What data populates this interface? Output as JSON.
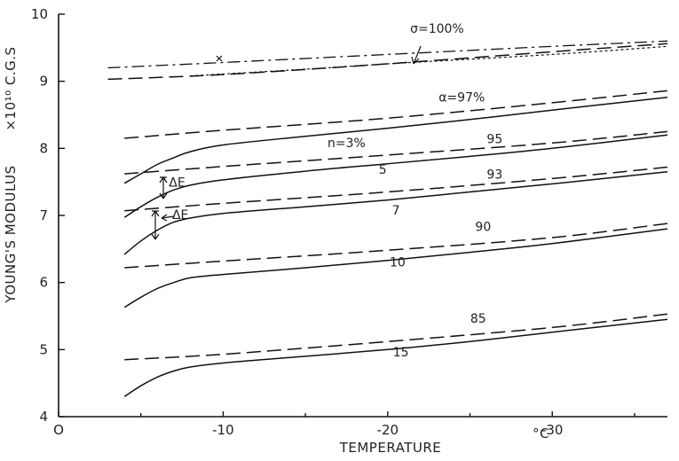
{
  "chart_data": {
    "type": "line",
    "xlabel": "TEMPERATURE",
    "xunit": "°C",
    "ylabel": "YOUNG'S MODULUS",
    "yunit": "×10¹⁰ C.G.S",
    "xlim": [
      0,
      -37
    ],
    "ylim": [
      4,
      10
    ],
    "x_ticks": [
      0,
      -10,
      -20,
      -30
    ],
    "x_tick_labels": [
      "O",
      "-10",
      "-20",
      "-30"
    ],
    "y_ticks": [
      4,
      5,
      6,
      7,
      8,
      9,
      10
    ],
    "y_tick_labels": [
      "4",
      "5",
      "6",
      "7",
      "8",
      "9",
      "10"
    ],
    "grid": false,
    "series": [
      {
        "name": "σ=100%",
        "style": "dashdot",
        "x": [
          -3,
          -10,
          -20,
          -30,
          -37
        ],
        "y": [
          9.2,
          9.28,
          9.4,
          9.52,
          9.6
        ]
      },
      {
        "style": "dashed",
        "x": [
          -3,
          -10,
          -20,
          -30,
          -37
        ],
        "y": [
          9.03,
          9.1,
          9.26,
          9.44,
          9.56
        ]
      },
      {
        "style": "dotted",
        "x": [
          -8,
          -15,
          -20,
          -30,
          -37
        ],
        "y": [
          9.08,
          9.18,
          9.26,
          9.4,
          9.52
        ]
      },
      {
        "name": "α=97%",
        "style": "dashed",
        "x": [
          -4,
          -10,
          -20,
          -30,
          -37
        ],
        "y": [
          8.15,
          8.27,
          8.45,
          8.68,
          8.86
        ]
      },
      {
        "name": "95",
        "style": "dashed",
        "x": [
          -4,
          -10,
          -20,
          -30,
          -37
        ],
        "y": [
          7.62,
          7.73,
          7.9,
          8.08,
          8.25
        ]
      },
      {
        "name": "93",
        "style": "dashed",
        "x": [
          -4,
          -10,
          -20,
          -30,
          -37
        ],
        "y": [
          7.07,
          7.18,
          7.35,
          7.55,
          7.72
        ]
      },
      {
        "name": "90",
        "style": "dashed",
        "x": [
          -4,
          -10,
          -20,
          -30,
          -37
        ],
        "y": [
          6.22,
          6.32,
          6.48,
          6.67,
          6.88
        ]
      },
      {
        "name": "85",
        "style": "dashed",
        "x": [
          -4,
          -10,
          -20,
          -30,
          -37
        ],
        "y": [
          4.85,
          4.93,
          5.12,
          5.33,
          5.53
        ]
      },
      {
        "name": "n=3%",
        "style": "solid",
        "x": [
          -4,
          -5,
          -6,
          -7,
          -8,
          -10,
          -15,
          -20,
          -25,
          -30,
          -37
        ],
        "y": [
          7.48,
          7.62,
          7.76,
          7.86,
          7.95,
          8.05,
          8.18,
          8.3,
          8.43,
          8.57,
          8.76
        ]
      },
      {
        "name": "5",
        "style": "solid",
        "x": [
          -4,
          -5,
          -6,
          -7,
          -8,
          -10,
          -15,
          -20,
          -25,
          -30,
          -37
        ],
        "y": [
          6.97,
          7.13,
          7.27,
          7.38,
          7.45,
          7.53,
          7.66,
          7.77,
          7.88,
          8.0,
          8.2
        ]
      },
      {
        "name": "7",
        "style": "solid",
        "x": [
          -4,
          -5,
          -6,
          -7,
          -8,
          -10,
          -15,
          -20,
          -25,
          -30,
          -37
        ],
        "y": [
          6.42,
          6.62,
          6.78,
          6.9,
          6.96,
          7.03,
          7.13,
          7.23,
          7.35,
          7.47,
          7.65
        ]
      },
      {
        "name": "10",
        "style": "solid",
        "x": [
          -4,
          -5,
          -6,
          -7,
          -8,
          -10,
          -15,
          -20,
          -25,
          -30,
          -37
        ],
        "y": [
          5.63,
          5.78,
          5.91,
          6.0,
          6.07,
          6.12,
          6.22,
          6.33,
          6.45,
          6.58,
          6.8
        ]
      },
      {
        "name": "15",
        "style": "solid",
        "x": [
          -4,
          -5,
          -6,
          -7,
          -8,
          -10,
          -15,
          -20,
          -25,
          -30,
          -37
        ],
        "y": [
          4.3,
          4.46,
          4.59,
          4.68,
          4.74,
          4.8,
          4.9,
          5.0,
          5.12,
          5.26,
          5.45
        ]
      }
    ],
    "annotations": [
      {
        "text": "σ=100%",
        "x": -23,
        "y": 9.72
      },
      {
        "text": "α=97%",
        "x": -24.5,
        "y": 8.7
      },
      {
        "text": "n=3%",
        "x": -17.5,
        "y": 8.02
      },
      {
        "text": "95",
        "x": -26.5,
        "y": 8.08
      },
      {
        "text": "5",
        "x": -19.7,
        "y": 7.62
      },
      {
        "text": "93",
        "x": -26.5,
        "y": 7.55
      },
      {
        "text": "7",
        "x": -20.5,
        "y": 7.01
      },
      {
        "text": "90",
        "x": -25.8,
        "y": 6.77
      },
      {
        "text": "10",
        "x": -20.6,
        "y": 6.24
      },
      {
        "text": "85",
        "x": -25.5,
        "y": 5.4
      },
      {
        "text": "15",
        "x": -20.8,
        "y": 4.9
      },
      {
        "text": "ΔE",
        "x": -7.2,
        "y": 7.43
      },
      {
        "text": "ΔE",
        "x": -7.4,
        "y": 6.95
      }
    ]
  }
}
